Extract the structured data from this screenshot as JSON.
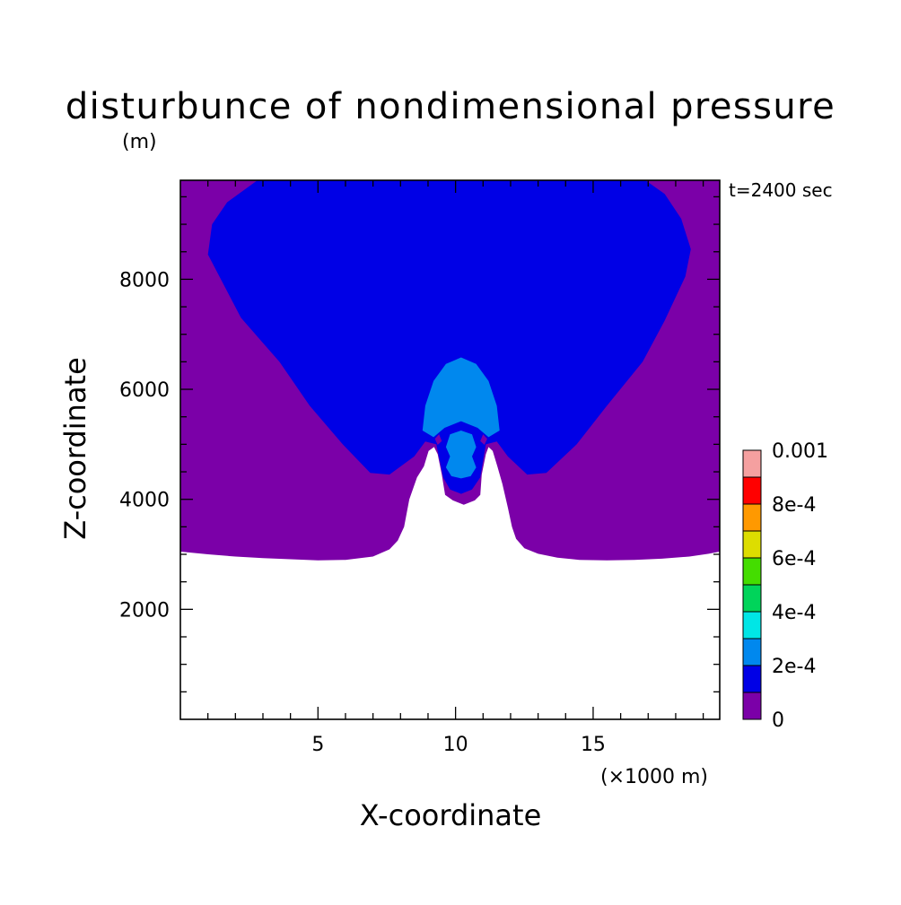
{
  "chart_data": {
    "type": "heatmap",
    "title": "disturbunce of nondimensional pressure",
    "title_unit": "(m)",
    "time_label": "t=2400 sec",
    "xlabel": "X-coordinate",
    "ylabel": "Z-coordinate",
    "x_unit": "(×1000 m)",
    "xlim": [
      0,
      19.6
    ],
    "ylim": [
      0,
      9800
    ],
    "x_ticks": [
      5,
      10,
      15
    ],
    "y_ticks": [
      2000,
      4000,
      6000,
      8000
    ],
    "grid": false,
    "colorbar": {
      "range": [
        0,
        0.001
      ],
      "boundaries": [
        0,
        0.0001,
        0.0002,
        0.0003,
        0.0004,
        0.0005,
        0.0006,
        0.0007,
        0.0008,
        0.0009,
        0.001
      ],
      "colors": [
        "#7b00a8",
        "#0000e6",
        "#0088ee",
        "#00e6e6",
        "#00d45a",
        "#44dd00",
        "#dddd00",
        "#ff9900",
        "#ff0000",
        "#f5a0a0"
      ],
      "tick_labels": [
        "0",
        "2e-4",
        "4e-4",
        "6e-4",
        "8e-4",
        "0.001"
      ]
    },
    "regions": [
      {
        "level": 0,
        "color": "#7b00a8",
        "polygon": [
          [
            0,
            9800
          ],
          [
            19.6,
            9800
          ],
          [
            19.6,
            3050
          ],
          [
            19.2,
            3010
          ],
          [
            18.5,
            2960
          ],
          [
            17.5,
            2920
          ],
          [
            16.5,
            2900
          ],
          [
            15.5,
            2890
          ],
          [
            14.5,
            2900
          ],
          [
            13.7,
            2940
          ],
          [
            13.0,
            3010
          ],
          [
            12.5,
            3110
          ],
          [
            12.2,
            3280
          ],
          [
            12.05,
            3500
          ],
          [
            11.9,
            3850
          ],
          [
            11.7,
            4280
          ],
          [
            11.52,
            4600
          ],
          [
            11.35,
            4880
          ],
          [
            11.2,
            4950
          ],
          [
            11.1,
            4820
          ],
          [
            10.95,
            4450
          ],
          [
            10.9,
            4080
          ],
          [
            10.7,
            3980
          ],
          [
            10.3,
            3900
          ],
          [
            9.9,
            3980
          ],
          [
            9.62,
            4080
          ],
          [
            9.5,
            4450
          ],
          [
            9.35,
            4820
          ],
          [
            9.22,
            4950
          ],
          [
            9.02,
            4880
          ],
          [
            8.85,
            4600
          ],
          [
            8.6,
            4400
          ],
          [
            8.32,
            4000
          ],
          [
            8.13,
            3500
          ],
          [
            7.9,
            3250
          ],
          [
            7.6,
            3090
          ],
          [
            7.0,
            2960
          ],
          [
            6.0,
            2900
          ],
          [
            5.0,
            2890
          ],
          [
            4.0,
            2910
          ],
          [
            3.0,
            2930
          ],
          [
            2.0,
            2960
          ],
          [
            1.0,
            3000
          ],
          [
            0,
            3050
          ]
        ]
      },
      {
        "level": 1,
        "color": "#0000e6",
        "polygon": [
          [
            2.8,
            9800
          ],
          [
            16.9,
            9800
          ],
          [
            17.6,
            9550
          ],
          [
            18.2,
            9100
          ],
          [
            18.55,
            8550
          ],
          [
            18.35,
            8050
          ],
          [
            17.6,
            7250
          ],
          [
            16.8,
            6500
          ],
          [
            15.5,
            5700
          ],
          [
            14.4,
            5000
          ],
          [
            13.3,
            4480
          ],
          [
            12.6,
            4450
          ],
          [
            11.9,
            4780
          ],
          [
            11.5,
            5050
          ],
          [
            11.1,
            5000
          ],
          [
            10.9,
            4400
          ],
          [
            10.6,
            4180
          ],
          [
            10.2,
            4100
          ],
          [
            9.8,
            4180
          ],
          [
            9.55,
            4400
          ],
          [
            9.3,
            5000
          ],
          [
            8.9,
            5050
          ],
          [
            8.5,
            4780
          ],
          [
            7.6,
            4450
          ],
          [
            6.9,
            4480
          ],
          [
            5.9,
            5000
          ],
          [
            4.7,
            5700
          ],
          [
            3.6,
            6500
          ],
          [
            2.2,
            7300
          ],
          [
            1.0,
            8450
          ],
          [
            1.15,
            9000
          ],
          [
            1.7,
            9400
          ]
        ]
      },
      {
        "level": 2,
        "color": "#0088ee",
        "polygon": [
          [
            10.2,
            6580
          ],
          [
            10.75,
            6460
          ],
          [
            11.2,
            6150
          ],
          [
            11.5,
            5700
          ],
          [
            11.6,
            5250
          ],
          [
            11.2,
            5130
          ],
          [
            10.8,
            5300
          ],
          [
            10.2,
            5420
          ],
          [
            9.6,
            5300
          ],
          [
            9.2,
            5130
          ],
          [
            8.8,
            5250
          ],
          [
            8.9,
            5700
          ],
          [
            9.2,
            6150
          ],
          [
            9.65,
            6460
          ]
        ]
      },
      {
        "level": 2,
        "color": "#0088ee",
        "polygon": [
          [
            10.2,
            5250
          ],
          [
            10.6,
            5180
          ],
          [
            10.75,
            4950
          ],
          [
            10.6,
            4780
          ],
          [
            10.75,
            4580
          ],
          [
            10.55,
            4420
          ],
          [
            10.2,
            4380
          ],
          [
            9.85,
            4420
          ],
          [
            9.65,
            4580
          ],
          [
            9.8,
            4780
          ],
          [
            9.65,
            4950
          ],
          [
            9.8,
            5180
          ]
        ]
      },
      {
        "level": 0,
        "color": "#7b00a8",
        "polygon": [
          [
            9.25,
            5100
          ],
          [
            9.4,
            5180
          ],
          [
            9.5,
            5060
          ],
          [
            9.35,
            4990
          ]
        ]
      },
      {
        "level": 0,
        "color": "#7b00a8",
        "polygon": [
          [
            11.15,
            5100
          ],
          [
            11.0,
            5180
          ],
          [
            10.9,
            5060
          ],
          [
            11.05,
            4990
          ]
        ]
      }
    ]
  }
}
